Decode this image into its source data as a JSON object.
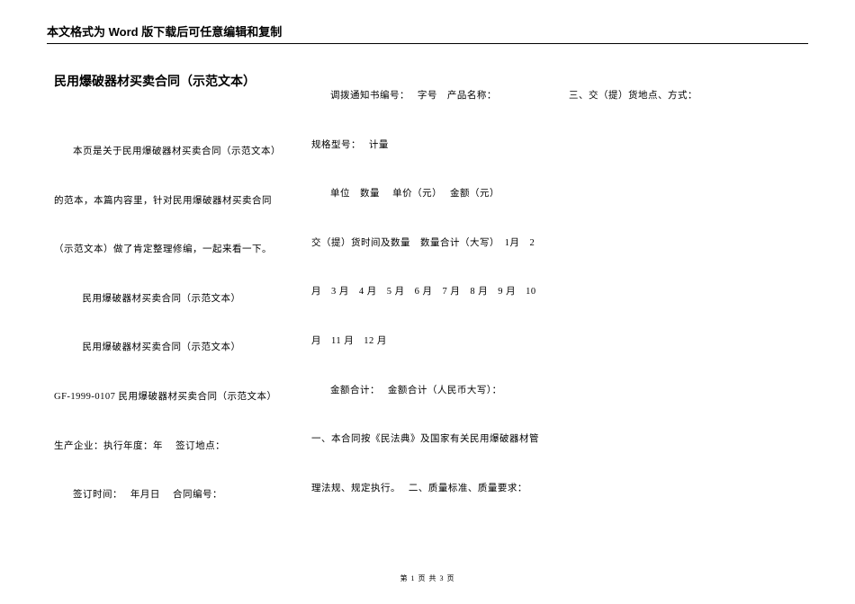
{
  "header": {
    "notice": "本文格式为 Word 版下载后可任意编辑和复制"
  },
  "doc": {
    "title": "民用爆破器材买卖合同（示范文本）",
    "p1": "本页是关于民用爆破器材买卖合同（示范文本）的范本，本篇内容里，针对民用爆破器材买卖合同（示范文本）做了肯定整理修编，一起来看一下。",
    "p2": "民用爆破器材买卖合同（示范文本）",
    "p3": "民用爆破器材买卖合同（示范文本）",
    "p4": "GF-1999-0107 民用爆破器材买卖合同（示范文本）　 生产企业：执行年度：年　 签订地点：",
    "p5": "签订时间：　 年月日　 合同编号：",
    "p6": "调拨通知书编号：　 字号　产品名称：",
    "p7": "规格型号：　 计量",
    "p8": "单位　数量　 单价（元）　 金额（元）",
    "p9": "交（提）货时间及数量　数量合计（大写）　1月　2 月　3 月　4 月　5 月　6 月　7 月　8 月　9 月　10 月　11 月　12 月",
    "p10": "金额合计：　 金额合计（人民币大写）：",
    "p11": "一、本合同按《民法典》及国家有关民用爆破器材管理法规、规定执行。　 二、质量标准、质量要求：　 三、交（提）货地点、方式："
  },
  "footer": {
    "pagenum": "第 1 页 共 3 页"
  }
}
